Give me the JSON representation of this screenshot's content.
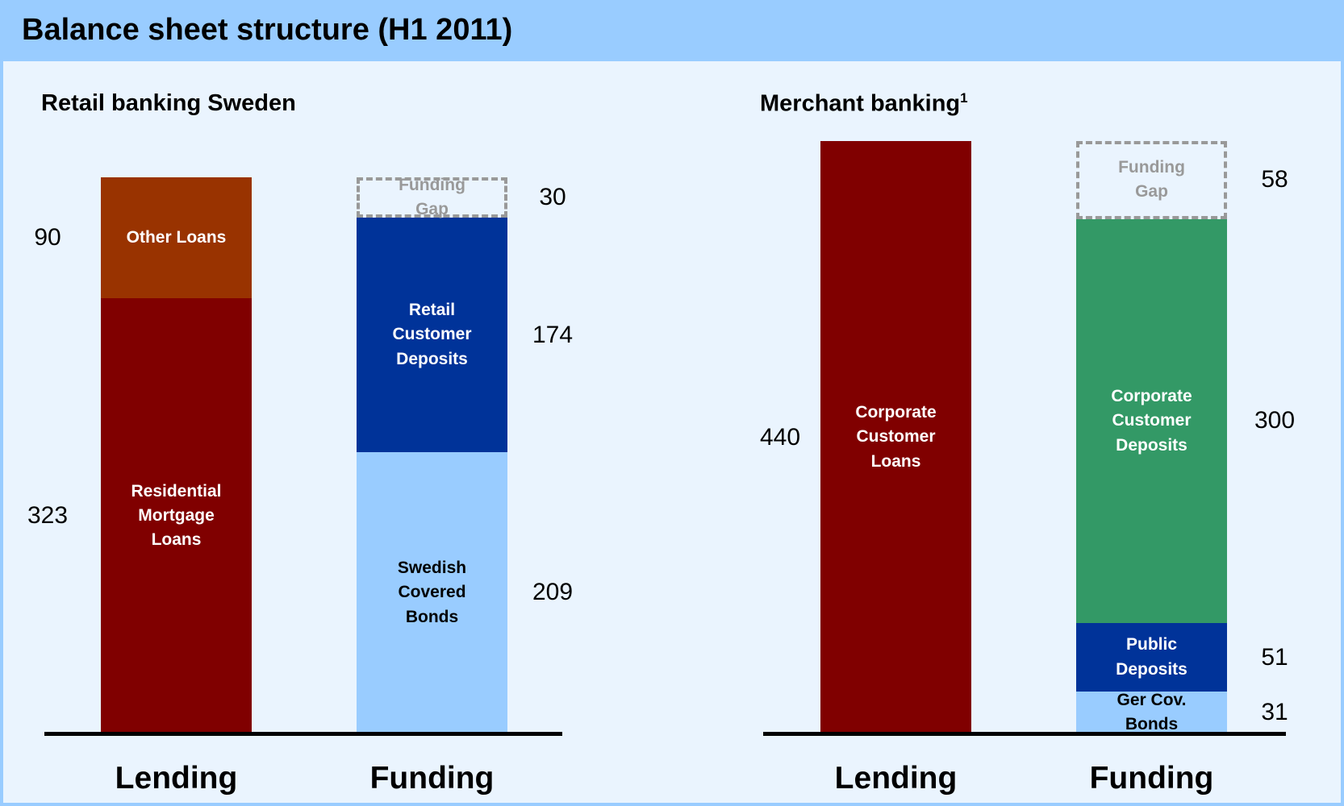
{
  "header": "Balance sheet structure (H1 2011)",
  "chart_data": [
    {
      "type": "stacked_bar",
      "title": "Retail banking Sweden",
      "categories": [
        "Lending",
        "Funding"
      ],
      "series": [
        {
          "name": "Residential Mortgage Loans",
          "color": "#800000",
          "values": [
            323,
            null
          ]
        },
        {
          "name": "Other Loans",
          "color": "#993300",
          "values": [
            90,
            null
          ]
        },
        {
          "name": "Swedish Covered Bonds",
          "color": "#99ccff",
          "label_color": "#000000",
          "values": [
            null,
            209
          ]
        },
        {
          "name": "Retail Customer Deposits",
          "color": "#003399",
          "values": [
            null,
            174
          ]
        },
        {
          "name": "Funding Gap",
          "color": "none",
          "outline": "dashed",
          "label_color": "#999999",
          "values": [
            null,
            30
          ]
        }
      ]
    },
    {
      "type": "stacked_bar",
      "title": "Merchant banking",
      "title_note": "1",
      "categories": [
        "Lending",
        "Funding"
      ],
      "series": [
        {
          "name": "Corporate Customer Loans",
          "color": "#800000",
          "values": [
            440,
            null
          ]
        },
        {
          "name": "Ger Cov. Bonds",
          "color": "#99ccff",
          "label_color": "#000000",
          "values": [
            null,
            31
          ]
        },
        {
          "name": "Public Deposits",
          "color": "#003399",
          "values": [
            null,
            51
          ]
        },
        {
          "name": "Corporate Customer Deposits",
          "color": "#339966",
          "values": [
            null,
            300
          ]
        },
        {
          "name": "Funding Gap",
          "color": "none",
          "outline": "dashed",
          "label_color": "#999999",
          "values": [
            null,
            58
          ]
        }
      ]
    }
  ]
}
